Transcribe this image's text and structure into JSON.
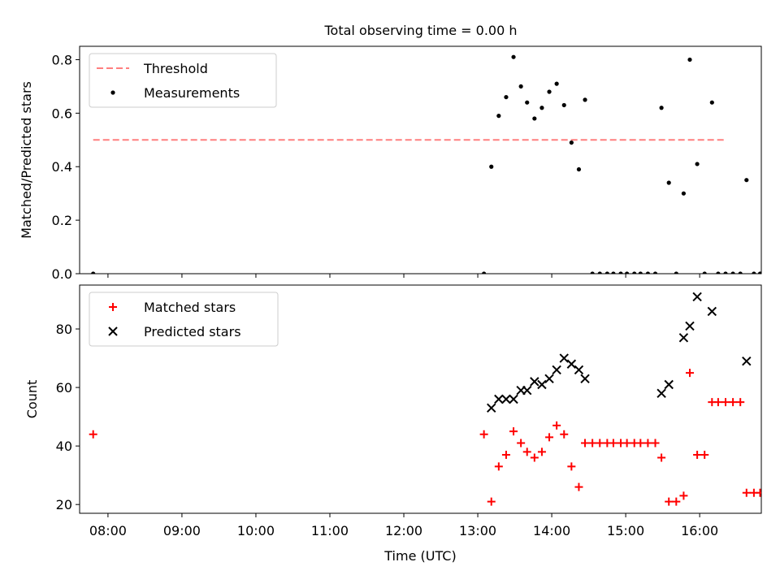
{
  "chart_data": [
    {
      "type": "scatter",
      "title": "Total observing time = 0.00 h",
      "xlabel": "",
      "ylabel": "Matched/Predicted stars",
      "xlim": [
        "07:37",
        "16:50"
      ],
      "ylim": [
        0,
        0.85
      ],
      "yticks": [
        0.0,
        0.2,
        0.4,
        0.6,
        0.8
      ],
      "ytick_labels": [
        "0.0",
        "0.2",
        "0.4",
        "0.6",
        "0.8"
      ],
      "threshold": {
        "name": "Threshold",
        "value": 0.5,
        "x": [
          "07:48",
          "16:20"
        ],
        "color": "#ff7f7f"
      },
      "legend": {
        "position": "top-left",
        "entries": [
          "Threshold",
          "Measurements"
        ]
      },
      "series": [
        {
          "name": "Measurements",
          "color": "#000000",
          "marker": "dot",
          "points": [
            [
              "07:48",
              0.0
            ],
            [
              "13:05",
              0.0
            ],
            [
              "13:11",
              0.4
            ],
            [
              "13:17",
              0.59
            ],
            [
              "13:23",
              0.66
            ],
            [
              "13:29",
              0.81
            ],
            [
              "13:35",
              0.7
            ],
            [
              "13:40",
              0.64
            ],
            [
              "13:46",
              0.58
            ],
            [
              "13:52",
              0.62
            ],
            [
              "13:58",
              0.68
            ],
            [
              "14:04",
              0.71
            ],
            [
              "14:10",
              0.63
            ],
            [
              "14:16",
              0.49
            ],
            [
              "14:22",
              0.39
            ],
            [
              "14:27",
              0.65
            ],
            [
              "14:33",
              0.0
            ],
            [
              "14:39",
              0.0
            ],
            [
              "14:45",
              0.0
            ],
            [
              "14:50",
              0.0
            ],
            [
              "14:56",
              0.0
            ],
            [
              "15:01",
              0.0
            ],
            [
              "15:07",
              0.0
            ],
            [
              "15:12",
              0.0
            ],
            [
              "15:18",
              0.0
            ],
            [
              "15:24",
              0.0
            ],
            [
              "15:29",
              0.62
            ],
            [
              "15:35",
              0.34
            ],
            [
              "15:41",
              0.0
            ],
            [
              "15:47",
              0.3
            ],
            [
              "15:52",
              0.8
            ],
            [
              "15:58",
              0.41
            ],
            [
              "16:04",
              0.0
            ],
            [
              "16:10",
              0.64
            ],
            [
              "16:15",
              0.0
            ],
            [
              "16:21",
              0.0
            ],
            [
              "16:27",
              0.0
            ],
            [
              "16:33",
              0.0
            ],
            [
              "16:38",
              0.35
            ],
            [
              "16:44",
              0.0
            ],
            [
              "16:49",
              0.0
            ]
          ]
        }
      ]
    },
    {
      "type": "scatter",
      "title": "",
      "xlabel": "Time (UTC)",
      "ylabel": "Count",
      "xlim": [
        "07:37",
        "16:50"
      ],
      "ylim": [
        17,
        95
      ],
      "yticks": [
        20,
        40,
        60,
        80
      ],
      "ytick_labels": [
        "20",
        "40",
        "60",
        "80"
      ],
      "xticks": [
        "08:00",
        "09:00",
        "10:00",
        "11:00",
        "12:00",
        "13:00",
        "14:00",
        "15:00",
        "16:00"
      ],
      "legend": {
        "position": "top-left",
        "entries": [
          "Matched stars",
          "Predicted stars"
        ]
      },
      "series": [
        {
          "name": "Matched stars",
          "color": "#ff0000",
          "marker": "plus",
          "points": [
            [
              "07:48",
              44
            ],
            [
              "13:05",
              44
            ],
            [
              "13:11",
              21
            ],
            [
              "13:17",
              33
            ],
            [
              "13:23",
              37
            ],
            [
              "13:29",
              45
            ],
            [
              "13:35",
              41
            ],
            [
              "13:40",
              38
            ],
            [
              "13:46",
              36
            ],
            [
              "13:52",
              38
            ],
            [
              "13:58",
              43
            ],
            [
              "14:04",
              47
            ],
            [
              "14:10",
              44
            ],
            [
              "14:16",
              33
            ],
            [
              "14:22",
              26
            ],
            [
              "14:27",
              41
            ],
            [
              "14:33",
              41
            ],
            [
              "14:39",
              41
            ],
            [
              "14:45",
              41
            ],
            [
              "14:50",
              41
            ],
            [
              "14:56",
              41
            ],
            [
              "15:01",
              41
            ],
            [
              "15:07",
              41
            ],
            [
              "15:12",
              41
            ],
            [
              "15:18",
              41
            ],
            [
              "15:24",
              41
            ],
            [
              "15:29",
              36
            ],
            [
              "15:35",
              21
            ],
            [
              "15:41",
              21
            ],
            [
              "15:47",
              23
            ],
            [
              "15:52",
              65
            ],
            [
              "15:58",
              37
            ],
            [
              "16:04",
              37
            ],
            [
              "16:10",
              55
            ],
            [
              "16:15",
              55
            ],
            [
              "16:21",
              55
            ],
            [
              "16:27",
              55
            ],
            [
              "16:33",
              55
            ],
            [
              "16:38",
              24
            ],
            [
              "16:44",
              24
            ],
            [
              "16:49",
              24
            ]
          ]
        },
        {
          "name": "Predicted stars",
          "color": "#000000",
          "marker": "x",
          "points": [
            [
              "13:11",
              53
            ],
            [
              "13:17",
              56
            ],
            [
              "13:23",
              56
            ],
            [
              "13:29",
              56
            ],
            [
              "13:35",
              59
            ],
            [
              "13:40",
              59
            ],
            [
              "13:46",
              62
            ],
            [
              "13:52",
              61
            ],
            [
              "13:58",
              63
            ],
            [
              "14:04",
              66
            ],
            [
              "14:10",
              70
            ],
            [
              "14:16",
              68
            ],
            [
              "14:22",
              66
            ],
            [
              "14:27",
              63
            ],
            [
              "15:29",
              58
            ],
            [
              "15:35",
              61
            ],
            [
              "15:47",
              77
            ],
            [
              "15:52",
              81
            ],
            [
              "15:58",
              91
            ],
            [
              "16:10",
              86
            ],
            [
              "16:38",
              69
            ]
          ]
        }
      ]
    }
  ]
}
